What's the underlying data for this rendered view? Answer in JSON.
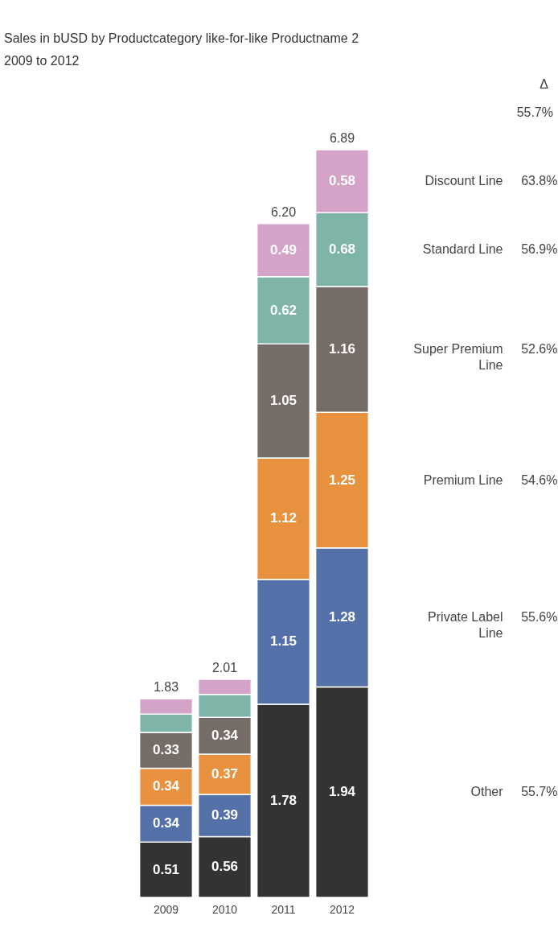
{
  "chart_data": {
    "type": "bar",
    "stacked": true,
    "title": "Sales in bUSD by Productcategory like-for-like Productname 2",
    "subtitle": "2009 to 2012",
    "categories": [
      "2009",
      "2010",
      "2011",
      "2012"
    ],
    "series": [
      {
        "name": "Other",
        "color": "#333333",
        "values": [
          0.51,
          0.56,
          1.78,
          1.94
        ],
        "value_labels": [
          "0.51",
          "0.56",
          "1.78",
          "1.94"
        ]
      },
      {
        "name": "Private Label Line",
        "color": "#5470a8",
        "values": [
          0.34,
          0.39,
          1.15,
          1.28
        ],
        "value_labels": [
          "0.34",
          "0.39",
          "1.15",
          "1.28"
        ]
      },
      {
        "name": "Premium Line",
        "color": "#e8913f",
        "values": [
          0.34,
          0.37,
          1.12,
          1.25
        ],
        "value_labels": [
          "0.34",
          "0.37",
          "1.12",
          "1.25"
        ]
      },
      {
        "name": "Super Premium Line",
        "color": "#756b67",
        "values": [
          0.33,
          0.34,
          1.05,
          1.16
        ],
        "value_labels": [
          "0.33",
          "0.34",
          "1.05",
          "1.16"
        ]
      },
      {
        "name": "Standard Line",
        "color": "#7fb5a9",
        "values": [
          0.17,
          0.21,
          0.62,
          0.68
        ],
        "value_labels": [
          null,
          null,
          "0.62",
          "0.68"
        ]
      },
      {
        "name": "Discount Line",
        "color": "#d5a3c8",
        "values": [
          0.14,
          0.14,
          0.49,
          0.58
        ],
        "value_labels": [
          null,
          null,
          "0.49",
          "0.58"
        ]
      }
    ],
    "totals": [
      "1.83",
      "2.01",
      "6.20",
      "6.89"
    ],
    "annotations": [
      "Δ",
      "55.7%",
      "55.7%",
      "55.6%",
      "54.6%",
      "52.6%",
      "56.9%",
      "63.8%"
    ]
  }
}
